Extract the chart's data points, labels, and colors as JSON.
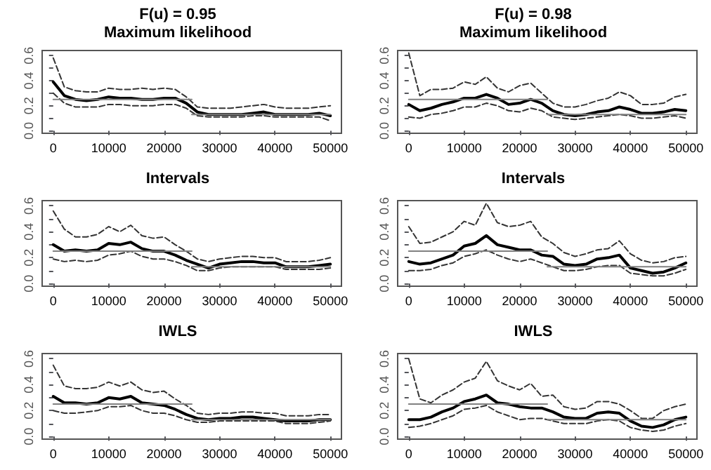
{
  "chart_data": [
    {
      "type": "line",
      "title": "F(u) = 0.95",
      "subtitle": "Maximum likelihood",
      "marker": "none",
      "x": [
        0,
        2000,
        4000,
        6000,
        8000,
        10000,
        12000,
        14000,
        16000,
        18000,
        20000,
        22000,
        24000,
        26000,
        28000,
        30000,
        32000,
        34000,
        36000,
        38000,
        40000,
        42000,
        44000,
        46000,
        48000,
        50000
      ],
      "xlim": [
        -2000,
        52000
      ],
      "xticks": [
        0,
        10000,
        20000,
        30000,
        40000,
        50000
      ],
      "ylim": [
        -0.02,
        0.64
      ],
      "yticks": [
        {
          "value": 0,
          "label": "0.0"
        },
        {
          "value": 0.1,
          "label": null
        },
        {
          "value": 0.2,
          "label": "0.2"
        },
        {
          "value": 0.3,
          "label": null
        },
        {
          "value": 0.4,
          "label": "0.4"
        },
        {
          "value": 0.5,
          "label": null
        },
        {
          "value": 0.6,
          "label": "0.6"
        }
      ],
      "series": [
        {
          "color": "#000000",
          "line_style": "solid",
          "values": [
            0.39,
            0.28,
            0.25,
            0.24,
            0.25,
            0.27,
            0.26,
            0.26,
            0.25,
            0.25,
            0.26,
            0.26,
            0.22,
            0.15,
            0.13,
            0.13,
            0.13,
            0.13,
            0.14,
            0.15,
            0.13,
            0.13,
            0.13,
            0.13,
            0.14,
            0.12
          ]
        },
        {
          "color": "#333333",
          "line_style": "dashed",
          "values": [
            0.58,
            0.35,
            0.32,
            0.31,
            0.31,
            0.34,
            0.33,
            0.33,
            0.34,
            0.33,
            0.34,
            0.33,
            0.27,
            0.19,
            0.18,
            0.18,
            0.18,
            0.19,
            0.2,
            0.21,
            0.19,
            0.18,
            0.18,
            0.18,
            0.19,
            0.2
          ]
        },
        {
          "color": "#333333",
          "line_style": "dashed",
          "values": [
            0.3,
            0.22,
            0.19,
            0.19,
            0.19,
            0.21,
            0.21,
            0.2,
            0.2,
            0.2,
            0.21,
            0.21,
            0.18,
            0.12,
            0.11,
            0.11,
            0.11,
            0.11,
            0.12,
            0.12,
            0.11,
            0.11,
            0.11,
            0.11,
            0.11,
            0.08
          ]
        },
        {
          "color": "#808080",
          "line_style": "solid",
          "x": [
            0,
            25000
          ],
          "values": [
            0.25,
            0.25
          ]
        },
        {
          "color": "#808080",
          "line_style": "solid",
          "x": [
            25000,
            50000
          ],
          "values": [
            0.13,
            0.13
          ]
        }
      ]
    },
    {
      "type": "line",
      "title": "F(u) = 0.98",
      "subtitle": "Maximum likelihood",
      "marker": "none",
      "x": [
        0,
        2000,
        4000,
        6000,
        8000,
        10000,
        12000,
        14000,
        16000,
        18000,
        20000,
        22000,
        24000,
        26000,
        28000,
        30000,
        32000,
        34000,
        36000,
        38000,
        40000,
        42000,
        44000,
        46000,
        48000,
        50000
      ],
      "xlim": [
        -2000,
        52000
      ],
      "xticks": [
        0,
        10000,
        20000,
        30000,
        40000,
        50000
      ],
      "ylim": [
        -0.02,
        0.64
      ],
      "yticks": [
        {
          "value": 0,
          "label": "0.0"
        },
        {
          "value": 0.1,
          "label": null
        },
        {
          "value": 0.2,
          "label": "0.2"
        },
        {
          "value": 0.3,
          "label": null
        },
        {
          "value": 0.4,
          "label": "0.4"
        },
        {
          "value": 0.5,
          "label": null
        },
        {
          "value": 0.6,
          "label": "0.6"
        }
      ],
      "series": [
        {
          "color": "#000000",
          "line_style": "solid",
          "values": [
            0.21,
            0.16,
            0.18,
            0.21,
            0.23,
            0.26,
            0.26,
            0.29,
            0.26,
            0.21,
            0.22,
            0.25,
            0.22,
            0.16,
            0.13,
            0.12,
            0.13,
            0.15,
            0.16,
            0.19,
            0.17,
            0.14,
            0.14,
            0.15,
            0.17,
            0.16
          ]
        },
        {
          "color": "#333333",
          "line_style": "dashed",
          "values": [
            0.62,
            0.28,
            0.33,
            0.33,
            0.34,
            0.39,
            0.37,
            0.43,
            0.34,
            0.31,
            0.36,
            0.38,
            0.3,
            0.22,
            0.19,
            0.19,
            0.21,
            0.24,
            0.26,
            0.31,
            0.28,
            0.21,
            0.21,
            0.22,
            0.27,
            0.29
          ]
        },
        {
          "color": "#333333",
          "line_style": "dashed",
          "values": [
            0.11,
            0.1,
            0.13,
            0.14,
            0.16,
            0.19,
            0.19,
            0.22,
            0.2,
            0.16,
            0.15,
            0.18,
            0.16,
            0.11,
            0.1,
            0.09,
            0.1,
            0.11,
            0.12,
            0.13,
            0.12,
            0.1,
            0.1,
            0.11,
            0.12,
            0.1
          ]
        },
        {
          "color": "#808080",
          "line_style": "solid",
          "x": [
            0,
            25000
          ],
          "values": [
            0.25,
            0.25
          ]
        },
        {
          "color": "#808080",
          "line_style": "solid",
          "x": [
            25000,
            50000
          ],
          "values": [
            0.13,
            0.13
          ]
        }
      ]
    },
    {
      "type": "line",
      "title": "Intervals",
      "marker": "none",
      "x": [
        0,
        2000,
        4000,
        6000,
        8000,
        10000,
        12000,
        14000,
        16000,
        18000,
        20000,
        22000,
        24000,
        26000,
        28000,
        30000,
        32000,
        34000,
        36000,
        38000,
        40000,
        42000,
        44000,
        46000,
        48000,
        50000
      ],
      "xlim": [
        -2000,
        52000
      ],
      "xticks": [
        0,
        10000,
        20000,
        30000,
        40000,
        50000
      ],
      "ylim": [
        -0.02,
        0.64
      ],
      "yticks": [
        {
          "value": 0,
          "label": "0.0"
        },
        {
          "value": 0.1,
          "label": null
        },
        {
          "value": 0.2,
          "label": "0.2"
        },
        {
          "value": 0.3,
          "label": null
        },
        {
          "value": 0.4,
          "label": "0.4"
        },
        {
          "value": 0.5,
          "label": null
        },
        {
          "value": 0.6,
          "label": "0.6"
        }
      ],
      "series": [
        {
          "color": "#000000",
          "line_style": "solid",
          "values": [
            0.3,
            0.25,
            0.26,
            0.25,
            0.26,
            0.31,
            0.3,
            0.32,
            0.27,
            0.25,
            0.25,
            0.22,
            0.18,
            0.15,
            0.12,
            0.15,
            0.16,
            0.17,
            0.17,
            0.16,
            0.16,
            0.13,
            0.13,
            0.13,
            0.14,
            0.15
          ]
        },
        {
          "color": "#333333",
          "line_style": "dashed",
          "values": [
            0.56,
            0.42,
            0.36,
            0.36,
            0.38,
            0.44,
            0.4,
            0.45,
            0.37,
            0.35,
            0.36,
            0.3,
            0.25,
            0.19,
            0.17,
            0.19,
            0.2,
            0.21,
            0.21,
            0.2,
            0.2,
            0.17,
            0.17,
            0.17,
            0.18,
            0.2
          ]
        },
        {
          "color": "#333333",
          "line_style": "dashed",
          "values": [
            0.19,
            0.17,
            0.18,
            0.17,
            0.18,
            0.22,
            0.23,
            0.25,
            0.21,
            0.19,
            0.19,
            0.17,
            0.14,
            0.1,
            0.1,
            0.12,
            0.13,
            0.13,
            0.13,
            0.13,
            0.13,
            0.11,
            0.11,
            0.11,
            0.11,
            0.12
          ]
        },
        {
          "color": "#808080",
          "line_style": "solid",
          "x": [
            0,
            25000
          ],
          "values": [
            0.25,
            0.25
          ]
        },
        {
          "color": "#808080",
          "line_style": "solid",
          "x": [
            25000,
            50000
          ],
          "values": [
            0.13,
            0.13
          ]
        }
      ]
    },
    {
      "type": "line",
      "title": "Intervals",
      "marker": "none",
      "x": [
        0,
        2000,
        4000,
        6000,
        8000,
        10000,
        12000,
        14000,
        16000,
        18000,
        20000,
        22000,
        24000,
        26000,
        28000,
        30000,
        32000,
        34000,
        36000,
        38000,
        40000,
        42000,
        44000,
        46000,
        48000,
        50000
      ],
      "xlim": [
        -2000,
        52000
      ],
      "xticks": [
        0,
        10000,
        20000,
        30000,
        40000,
        50000
      ],
      "ylim": [
        -0.02,
        0.64
      ],
      "yticks": [
        {
          "value": 0,
          "label": "0.0"
        },
        {
          "value": 0.1,
          "label": null
        },
        {
          "value": 0.2,
          "label": "0.2"
        },
        {
          "value": 0.3,
          "label": null
        },
        {
          "value": 0.4,
          "label": "0.4"
        },
        {
          "value": 0.5,
          "label": null
        },
        {
          "value": 0.6,
          "label": "0.6"
        }
      ],
      "series": [
        {
          "color": "#000000",
          "line_style": "solid",
          "values": [
            0.17,
            0.15,
            0.16,
            0.19,
            0.22,
            0.29,
            0.31,
            0.37,
            0.3,
            0.28,
            0.26,
            0.26,
            0.22,
            0.21,
            0.15,
            0.14,
            0.15,
            0.19,
            0.2,
            0.22,
            0.12,
            0.1,
            0.08,
            0.09,
            0.12,
            0.16
          ]
        },
        {
          "color": "#333333",
          "line_style": "dashed",
          "values": [
            0.44,
            0.31,
            0.32,
            0.36,
            0.4,
            0.48,
            0.45,
            0.62,
            0.47,
            0.44,
            0.45,
            0.48,
            0.36,
            0.31,
            0.24,
            0.21,
            0.23,
            0.26,
            0.27,
            0.33,
            0.23,
            0.18,
            0.16,
            0.17,
            0.2,
            0.21
          ]
        },
        {
          "color": "#333333",
          "line_style": "dashed",
          "values": [
            0.1,
            0.1,
            0.11,
            0.14,
            0.16,
            0.21,
            0.23,
            0.26,
            0.22,
            0.19,
            0.17,
            0.19,
            0.16,
            0.13,
            0.1,
            0.1,
            0.11,
            0.13,
            0.14,
            0.14,
            0.08,
            0.07,
            0.06,
            0.06,
            0.08,
            0.11
          ]
        },
        {
          "color": "#808080",
          "line_style": "solid",
          "x": [
            0,
            25000
          ],
          "values": [
            0.25,
            0.25
          ]
        },
        {
          "color": "#808080",
          "line_style": "solid",
          "x": [
            25000,
            50000
          ],
          "values": [
            0.13,
            0.13
          ]
        }
      ]
    },
    {
      "type": "line",
      "title": "IWLS",
      "marker": "none",
      "x": [
        0,
        2000,
        4000,
        6000,
        8000,
        10000,
        12000,
        14000,
        16000,
        18000,
        20000,
        22000,
        24000,
        26000,
        28000,
        30000,
        32000,
        34000,
        36000,
        38000,
        40000,
        42000,
        44000,
        46000,
        48000,
        50000
      ],
      "xlim": [
        -2000,
        52000
      ],
      "xticks": [
        0,
        10000,
        20000,
        30000,
        40000,
        50000
      ],
      "ylim": [
        -0.02,
        0.64
      ],
      "yticks": [
        {
          "value": 0,
          "label": "0.0"
        },
        {
          "value": 0.1,
          "label": null
        },
        {
          "value": 0.2,
          "label": "0.2"
        },
        {
          "value": 0.3,
          "label": null
        },
        {
          "value": 0.4,
          "label": "0.4"
        },
        {
          "value": 0.5,
          "label": null
        },
        {
          "value": 0.6,
          "label": "0.6"
        }
      ],
      "series": [
        {
          "color": "#000000",
          "line_style": "solid",
          "values": [
            0.31,
            0.26,
            0.26,
            0.25,
            0.26,
            0.3,
            0.29,
            0.31,
            0.26,
            0.25,
            0.24,
            0.21,
            0.17,
            0.14,
            0.13,
            0.14,
            0.14,
            0.15,
            0.15,
            0.14,
            0.13,
            0.12,
            0.12,
            0.12,
            0.13,
            0.13
          ]
        },
        {
          "color": "#333333",
          "line_style": "dashed",
          "values": [
            0.55,
            0.39,
            0.37,
            0.37,
            0.38,
            0.42,
            0.39,
            0.42,
            0.36,
            0.34,
            0.35,
            0.29,
            0.24,
            0.18,
            0.17,
            0.18,
            0.18,
            0.19,
            0.19,
            0.18,
            0.18,
            0.16,
            0.16,
            0.16,
            0.17,
            0.17
          ]
        },
        {
          "color": "#333333",
          "line_style": "dashed",
          "values": [
            0.2,
            0.18,
            0.18,
            0.19,
            0.2,
            0.23,
            0.23,
            0.24,
            0.2,
            0.18,
            0.18,
            0.16,
            0.13,
            0.11,
            0.11,
            0.12,
            0.12,
            0.12,
            0.12,
            0.12,
            0.12,
            0.1,
            0.1,
            0.1,
            0.11,
            0.12
          ]
        },
        {
          "color": "#808080",
          "line_style": "solid",
          "x": [
            0,
            25000
          ],
          "values": [
            0.25,
            0.25
          ]
        },
        {
          "color": "#808080",
          "line_style": "solid",
          "x": [
            25000,
            50000
          ],
          "values": [
            0.13,
            0.13
          ]
        }
      ]
    },
    {
      "type": "line",
      "title": "IWLS",
      "marker": "none",
      "x": [
        0,
        2000,
        4000,
        6000,
        8000,
        10000,
        12000,
        14000,
        16000,
        18000,
        20000,
        22000,
        24000,
        26000,
        28000,
        30000,
        32000,
        34000,
        36000,
        38000,
        40000,
        42000,
        44000,
        46000,
        48000,
        50000
      ],
      "xlim": [
        -2000,
        52000
      ],
      "xticks": [
        0,
        10000,
        20000,
        30000,
        40000,
        50000
      ],
      "ylim": [
        -0.02,
        0.64
      ],
      "yticks": [
        {
          "value": 0,
          "label": "0.0"
        },
        {
          "value": 0.1,
          "label": null
        },
        {
          "value": 0.2,
          "label": "0.2"
        },
        {
          "value": 0.3,
          "label": null
        },
        {
          "value": 0.4,
          "label": "0.4"
        },
        {
          "value": 0.5,
          "label": null
        },
        {
          "value": 0.6,
          "label": "0.6"
        }
      ],
      "series": [
        {
          "color": "#000000",
          "line_style": "solid",
          "values": [
            0.13,
            0.13,
            0.15,
            0.19,
            0.22,
            0.27,
            0.29,
            0.32,
            0.26,
            0.25,
            0.23,
            0.22,
            0.22,
            0.19,
            0.15,
            0.14,
            0.14,
            0.18,
            0.19,
            0.18,
            0.12,
            0.08,
            0.07,
            0.09,
            0.13,
            0.15
          ]
        },
        {
          "color": "#333333",
          "line_style": "dashed",
          "values": [
            0.6,
            0.29,
            0.26,
            0.32,
            0.36,
            0.42,
            0.45,
            0.58,
            0.43,
            0.39,
            0.36,
            0.41,
            0.31,
            0.32,
            0.23,
            0.21,
            0.22,
            0.27,
            0.27,
            0.25,
            0.2,
            0.14,
            0.14,
            0.2,
            0.23,
            0.25
          ]
        },
        {
          "color": "#333333",
          "line_style": "dashed",
          "values": [
            0.07,
            0.08,
            0.1,
            0.13,
            0.16,
            0.21,
            0.22,
            0.24,
            0.19,
            0.16,
            0.13,
            0.14,
            0.14,
            0.12,
            0.1,
            0.1,
            0.1,
            0.12,
            0.13,
            0.12,
            0.07,
            0.05,
            0.04,
            0.05,
            0.08,
            0.1
          ]
        },
        {
          "color": "#808080",
          "line_style": "solid",
          "x": [
            0,
            25000
          ],
          "values": [
            0.25,
            0.25
          ]
        },
        {
          "color": "#808080",
          "line_style": "solid",
          "x": [
            25000,
            50000
          ],
          "values": [
            0.13,
            0.13
          ]
        }
      ]
    }
  ]
}
